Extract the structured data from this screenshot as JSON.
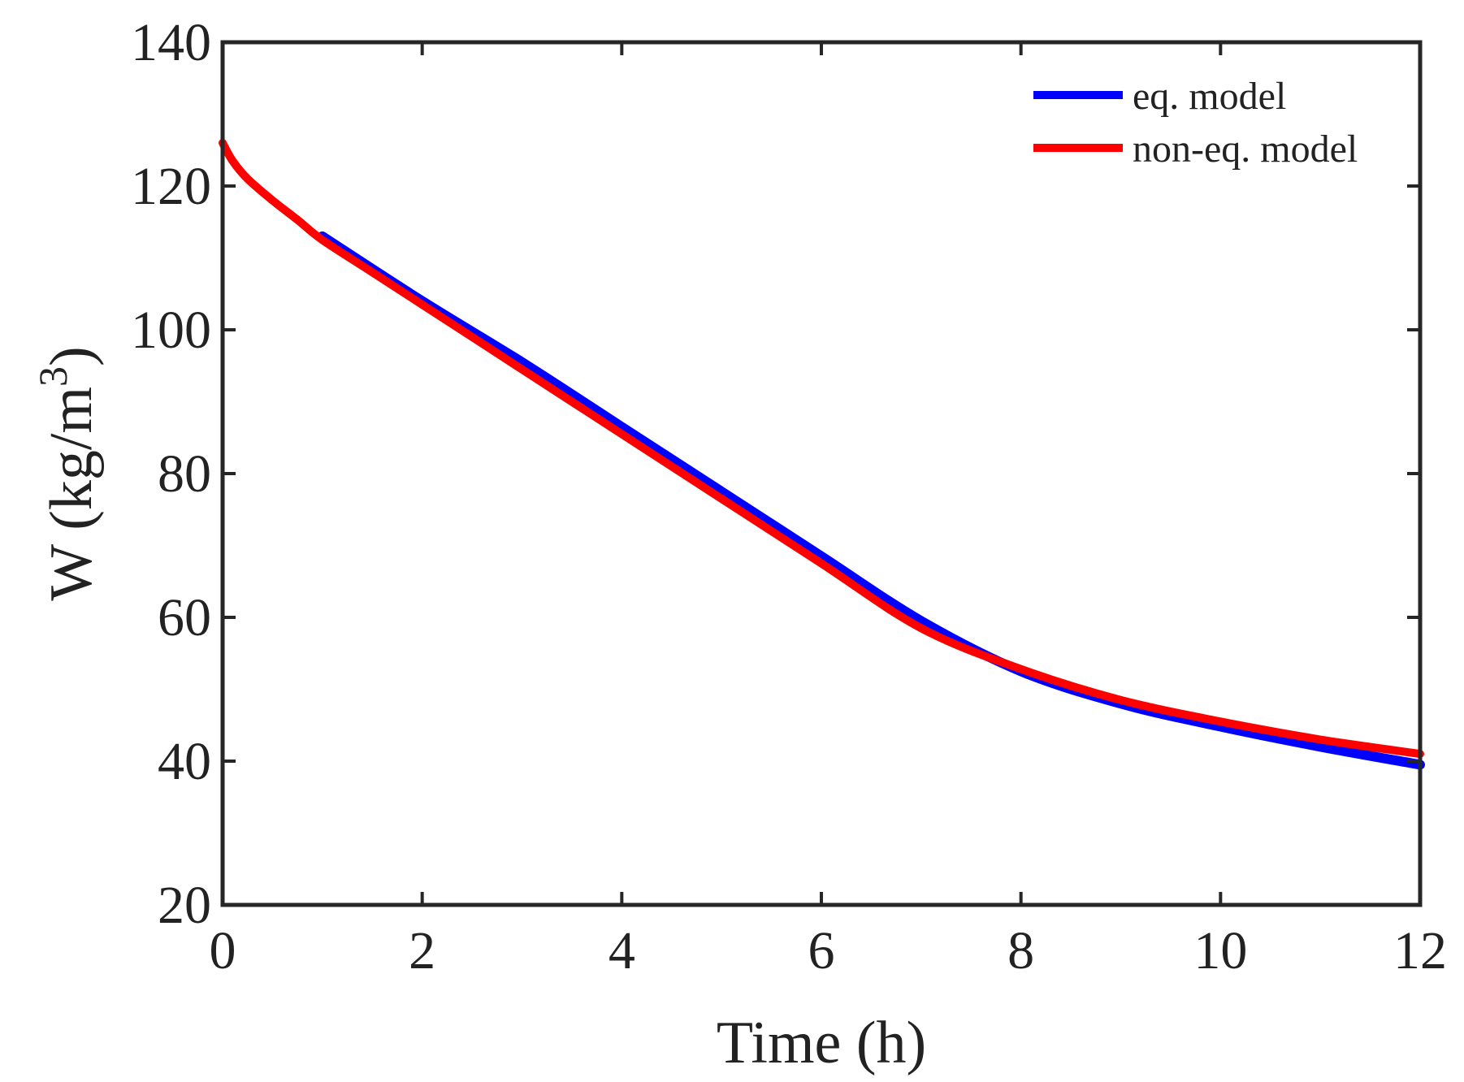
{
  "chart_data": {
    "type": "line",
    "title": "",
    "xlabel": "Time (h)",
    "ylabel_main": "W (kg/m",
    "ylabel_sup": "3",
    "ylabel_close": ")",
    "xlim": [
      0,
      12
    ],
    "ylim": [
      20,
      140
    ],
    "xticks": [
      0,
      2,
      4,
      6,
      8,
      10,
      12
    ],
    "yticks": [
      20,
      40,
      60,
      80,
      100,
      120,
      140
    ],
    "xtick_labels": [
      "0",
      "2",
      "4",
      "6",
      "8",
      "10",
      "12"
    ],
    "ytick_labels": [
      "20",
      "40",
      "60",
      "80",
      "100",
      "120",
      "140"
    ],
    "grid": false,
    "legend_position": "top-right",
    "series": [
      {
        "name": "eq. model",
        "color": "#0000ff",
        "x": [
          1,
          2,
          3,
          4,
          5,
          6,
          7,
          8,
          9,
          10,
          11,
          12
        ],
        "y": [
          113.0,
          104.0,
          95.5,
          86.5,
          77.5,
          68.5,
          59.5,
          52.5,
          48.0,
          44.8,
          42.0,
          39.5
        ]
      },
      {
        "name": "non-eq. model",
        "color": "#ff0000",
        "x": [
          0,
          0.1,
          0.25,
          0.5,
          0.75,
          1,
          1.5,
          2,
          3,
          4,
          5,
          6,
          7,
          8,
          9,
          10,
          11,
          12
        ],
        "y": [
          126.0,
          123.5,
          121.0,
          118.0,
          115.3,
          112.5,
          108.0,
          103.5,
          94.5,
          85.5,
          76.5,
          67.5,
          58.5,
          52.8,
          48.5,
          45.5,
          43.0,
          41.0
        ]
      }
    ]
  }
}
